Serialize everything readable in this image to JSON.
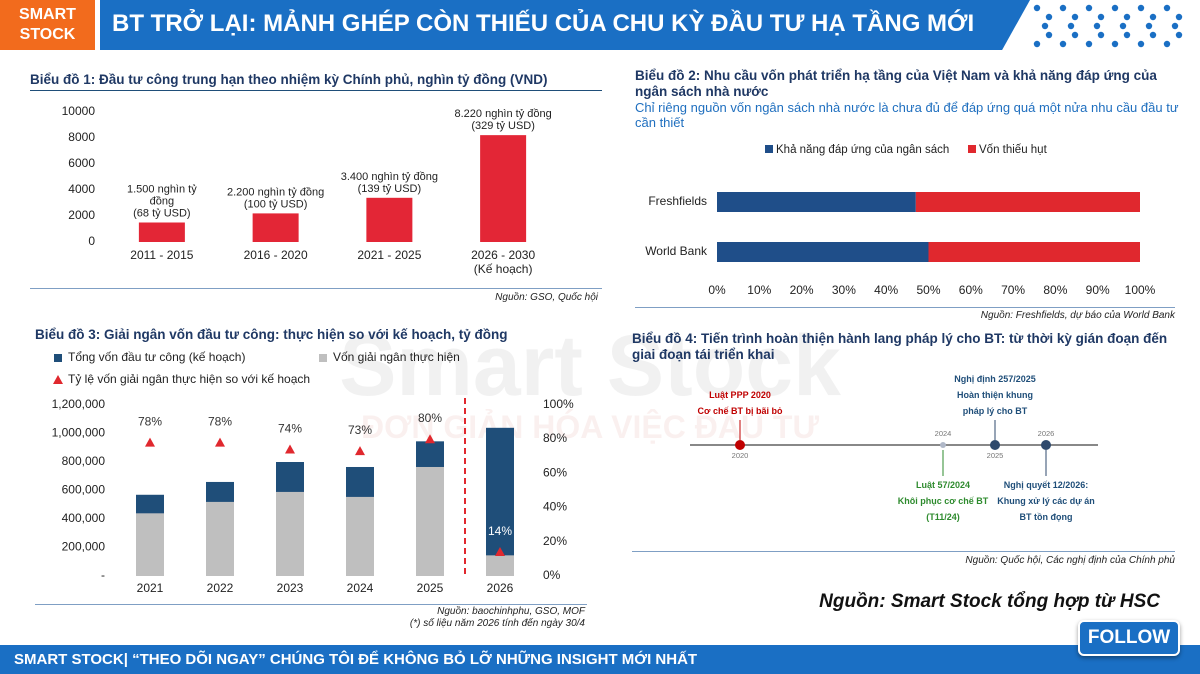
{
  "header": {
    "logo": "SMART\nSTOCK",
    "title": "BT TRỞ LẠI: MẢNH GHÉP CÒN THIẾU CỦA CHU KỲ ĐẦU TƯ HẠ TẦNG MỚI"
  },
  "watermark": {
    "brand": "Smart Stock",
    "slogan": "ĐƠN GIẢN HÓA VIỆC ĐẦU TƯ"
  },
  "chart_data": [
    {
      "type": "bar",
      "title": "Biểu đồ 1: Đầu tư công trung hạn theo nhiệm kỳ Chính phủ, nghìn tỷ đồng (VND)",
      "categories": [
        "2011 - 2015",
        "2016 - 2020",
        "2021 - 2025",
        "2026 - 2030\n(Kế hoạch)"
      ],
      "values": [
        1500,
        2200,
        3400,
        8220
      ],
      "value_labels": [
        "1.500 nghìn tỷ\nđồng\n(68 tỷ USD)",
        "2.200 nghìn tỷ đồng\n(100 tỷ USD)",
        "3.400 nghìn tỷ đồng\n(139 tỷ USD)",
        "8.220 nghìn tỷ đồng\n(329 tỷ USD)"
      ],
      "color": "#e32636",
      "ylim": [
        0,
        10000
      ],
      "yticks": [
        0,
        2000,
        4000,
        6000,
        8000,
        10000
      ],
      "grid": false,
      "source": "Nguồn: GSO, Quốc hội"
    },
    {
      "type": "barh",
      "stacked": true,
      "title": "Biểu đồ 2: Nhu cầu vốn phát triển hạ tầng của Việt Nam và khả năng đáp ứng của ngân sách nhà nước",
      "subtitle": "Chỉ riêng nguồn vốn ngân sách nhà nước là chưa đủ để đáp ứng quá một nửa nhu cầu đầu tư cần thiết",
      "categories": [
        "Freshfields",
        "World Bank"
      ],
      "series": [
        {
          "name": "Khả năng đáp ứng của ngân sách",
          "color": "#1f4e89",
          "values": [
            47,
            50
          ]
        },
        {
          "name": "Vốn thiếu hụt",
          "color": "#e0282e",
          "values": [
            53,
            50
          ]
        }
      ],
      "xlim": [
        0,
        100
      ],
      "xticks": [
        {
          "value": 0,
          "label": "0%"
        },
        {
          "value": 10,
          "label": "10%"
        },
        {
          "value": 20,
          "label": "20%"
        },
        {
          "value": 30,
          "label": "30%"
        },
        {
          "value": 40,
          "label": "40%"
        },
        {
          "value": 50,
          "label": "50%"
        },
        {
          "value": 60,
          "label": "60%"
        },
        {
          "value": 70,
          "label": "70%"
        },
        {
          "value": 80,
          "label": "80%"
        },
        {
          "value": 90,
          "label": "90%"
        },
        {
          "value": 100,
          "label": "100%"
        }
      ],
      "legend": "top",
      "source": "Nguồn: Freshfields, dự báo của World Bank"
    },
    {
      "type": "combo",
      "overlap": true,
      "title": "Biểu đồ 3: Giải ngân vốn đầu tư công: thực hiện so với kế hoạch, tỷ đồng",
      "categories": [
        "2021",
        "2022",
        "2023",
        "2024",
        "2025",
        "2026"
      ],
      "series": [
        {
          "name": "Tổng vốn đầu tư công (kế hoạch)",
          "color": "#1f4e79",
          "values": [
            570000,
            660000,
            800000,
            765000,
            945000,
            1040000
          ]
        },
        {
          "name": "Vốn giải ngân thực hiện",
          "color": "#bfbfbf",
          "values": [
            440000,
            520000,
            590000,
            555000,
            765000,
            145000
          ]
        },
        {
          "name": "Tỷ lệ vốn giải ngân thực hiện so với kế hoạch",
          "color": "#e0282e",
          "axis": "y2",
          "marker": "triangle",
          "values": [
            78,
            78,
            74,
            73,
            80,
            14
          ],
          "value_labels": [
            "78%",
            "78%",
            "74%",
            "73%",
            "80%",
            "14%"
          ]
        }
      ],
      "ylim": [
        0,
        1200000
      ],
      "yticks": [
        {
          "value": 0,
          "label": "-"
        },
        {
          "value": 200000,
          "label": "200,000"
        },
        {
          "value": 400000,
          "label": "400,000"
        },
        {
          "value": 600000,
          "label": "600,000"
        },
        {
          "value": 800000,
          "label": "800,000"
        },
        {
          "value": 1000000,
          "label": "1,000,000"
        },
        {
          "value": 1200000,
          "label": "1,200,000"
        }
      ],
      "y2lim": [
        0,
        100
      ],
      "y2ticks": [
        {
          "value": 0,
          "label": "0%"
        },
        {
          "value": 20,
          "label": "20%"
        },
        {
          "value": 40,
          "label": "40%"
        },
        {
          "value": 60,
          "label": "60%"
        },
        {
          "value": 80,
          "label": "80%"
        },
        {
          "value": 100,
          "label": "100%"
        }
      ],
      "grid": false,
      "source": "Nguồn: baochinhphu, GSO, MOF",
      "note": "(*) số liệu năm 2026 tính đến ngày 30/4"
    }
  ],
  "timeline": {
    "title": "Biểu đồ 4: Tiến trình hoàn thiện hành lang pháp lý cho BT: từ thời kỳ gián đoạn đến giai đoạn tái triển khai",
    "events": [
      {
        "year": "2020",
        "text": "Luật PPP 2020\nCơ chế BT bị bãi bỏ"
      },
      {
        "year": "2024",
        "text": "Luật 57/2024\nKhôi phục cơ chế BT\n(T11/24)"
      },
      {
        "year": "2025",
        "text": "Nghị định 257/2025\nHoàn thiện khung\npháp lý cho BT"
      },
      {
        "year": "2026",
        "text": "Nghị quyết 12/2026:\nKhung xử lý các dự án\nBT tồn đọng"
      }
    ],
    "source": "Nguồn: Quốc hội, Các nghị định của Chính phủ"
  },
  "summary_source": "Nguồn: Smart Stock tổng hợp từ HSC",
  "footer": {
    "text": "SMART STOCK| “THEO DÕI NGAY” CHÚNG TÔI ĐỂ KHÔNG BỎ LỠ NHỮNG INSIGHT MỚI NHẤT",
    "button": "FOLLOW"
  }
}
